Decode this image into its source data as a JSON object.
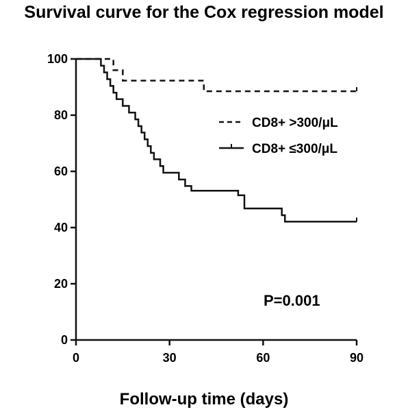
{
  "chart_data": {
    "type": "line",
    "title": "Survival curve for the Cox regression model",
    "xlabel": "Follow-up time (days)",
    "ylabel": "",
    "xlim": [
      0,
      90
    ],
    "ylim": [
      0,
      100
    ],
    "xticks": [
      0,
      30,
      60,
      90
    ],
    "yticks": [
      0,
      20,
      40,
      60,
      80,
      100
    ],
    "grid": false,
    "legend_position": "right",
    "annotation": "P=0.001",
    "series": [
      {
        "name": "CD8+ >300/μL",
        "style": "dashed",
        "color": "#111111",
        "x": [
          0,
          11,
          12,
          13,
          15,
          40,
          41,
          90
        ],
        "y": [
          100,
          100,
          96,
          96,
          92.3,
          92.3,
          88.5,
          88.5
        ]
      },
      {
        "name": "CD8+ ≤300/μL",
        "style": "solid",
        "color": "#111111",
        "x": [
          0,
          7,
          8,
          9,
          10,
          11,
          12,
          13,
          15,
          17,
          19,
          20,
          21,
          22,
          23,
          24,
          25,
          27,
          28,
          29,
          30,
          33,
          34,
          35,
          37,
          50,
          52,
          54,
          65,
          66,
          67,
          90
        ],
        "y": [
          100,
          100,
          97.6,
          95.2,
          92.8,
          90.4,
          88,
          85.7,
          83.3,
          80.9,
          78.5,
          76.1,
          73.8,
          71.4,
          69,
          66.6,
          64.3,
          61.9,
          59.5,
          59.5,
          59.5,
          57.1,
          57.1,
          54.8,
          53.1,
          53.1,
          51.5,
          46.8,
          46.8,
          44.4,
          42.1,
          42.1
        ]
      }
    ]
  }
}
